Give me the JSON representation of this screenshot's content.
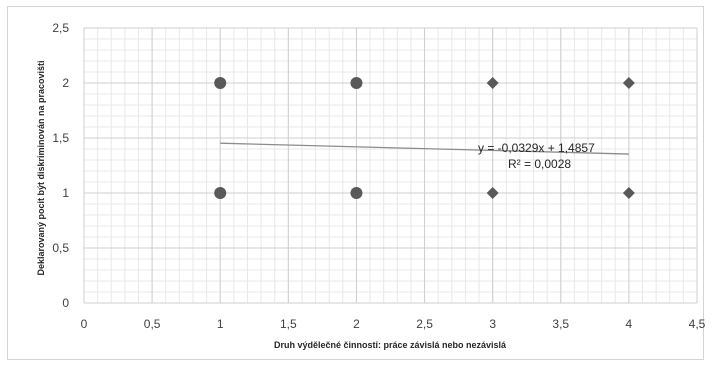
{
  "chart_data": {
    "type": "scatter",
    "xlabel": "Druh výdělečné činnosti: práce závislá nebo nezávislá",
    "ylabel": "Deklarovaný pocit být diskriminován na pracovišti",
    "xlim": [
      0,
      4.5
    ],
    "ylim": [
      0,
      2.5
    ],
    "x_ticks": [
      "0",
      "0,5",
      "1",
      "1,5",
      "2",
      "2,5",
      "3",
      "3,5",
      "4",
      "4,5"
    ],
    "y_ticks": [
      "0",
      "0,5",
      "1",
      "1,5",
      "2",
      "2,5"
    ],
    "grid": true,
    "marker_color": "#595959",
    "trendline_color": "#8c8c8c",
    "points": [
      {
        "x": 1,
        "y": 2
      },
      {
        "x": 2,
        "y": 2
      },
      {
        "x": 3,
        "y": 2
      },
      {
        "x": 4,
        "y": 2
      },
      {
        "x": 1,
        "y": 1
      },
      {
        "x": 2,
        "y": 1
      },
      {
        "x": 3,
        "y": 1
      },
      {
        "x": 4,
        "y": 1
      }
    ],
    "trendline": {
      "type": "linear",
      "slope": -0.0329,
      "intercept": 1.4857,
      "x_range": [
        1,
        4
      ],
      "equation": "y = -0,0329x + 1,4857",
      "r_squared": "R² = 0,0028"
    }
  }
}
